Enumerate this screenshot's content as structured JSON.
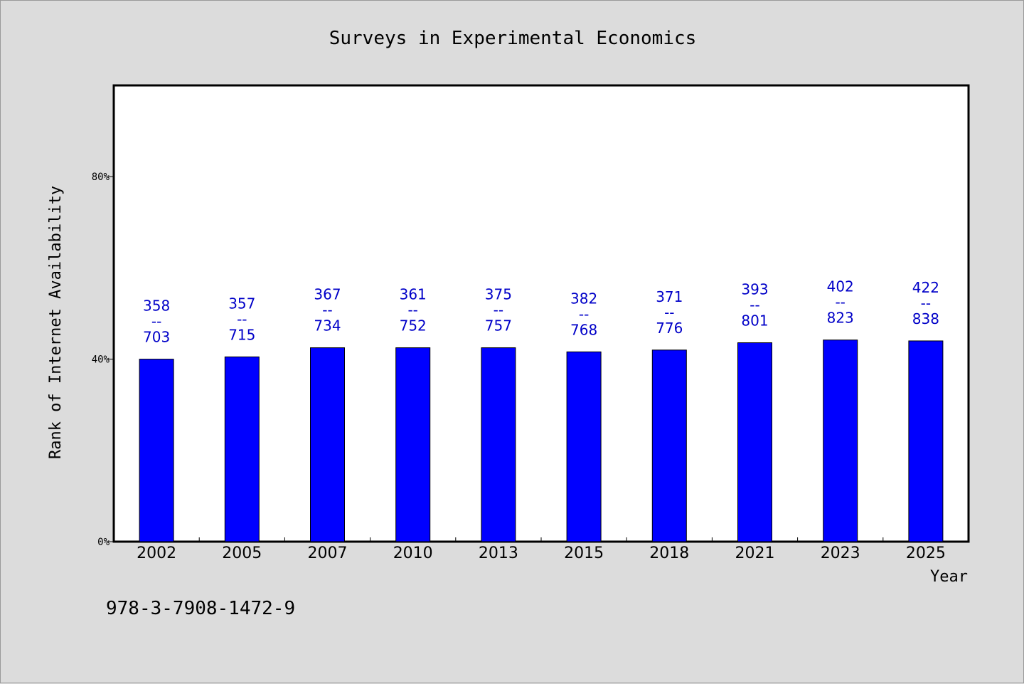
{
  "chart_data": {
    "type": "bar",
    "title": "Surveys in Experimental Economics",
    "xlabel": "Year",
    "ylabel": "Rank of Internet Availability",
    "ylim": [
      0,
      100
    ],
    "yticks": [
      {
        "value": 0,
        "label": "0%"
      },
      {
        "value": 40,
        "label": "40%"
      },
      {
        "value": 80,
        "label": "80%"
      }
    ],
    "categories": [
      "2002",
      "2005",
      "2007",
      "2010",
      "2013",
      "2015",
      "2018",
      "2021",
      "2023",
      "2025"
    ],
    "values": [
      40.0,
      40.5,
      42.5,
      42.5,
      42.5,
      41.6,
      42.0,
      43.6,
      44.2,
      44.0
    ],
    "data_labels": [
      {
        "top": "358",
        "sep": "--",
        "bottom": "703"
      },
      {
        "top": "357",
        "sep": "--",
        "bottom": "715"
      },
      {
        "top": "367",
        "sep": "--",
        "bottom": "734"
      },
      {
        "top": "361",
        "sep": "--",
        "bottom": "752"
      },
      {
        "top": "375",
        "sep": "--",
        "bottom": "757"
      },
      {
        "top": "382",
        "sep": "--",
        "bottom": "768"
      },
      {
        "top": "371",
        "sep": "--",
        "bottom": "776"
      },
      {
        "top": "393",
        "sep": "--",
        "bottom": "801"
      },
      {
        "top": "402",
        "sep": "--",
        "bottom": "823"
      },
      {
        "top": "422",
        "sep": "--",
        "bottom": "838"
      }
    ],
    "bar_color": "#0000ff",
    "label_color": "#0000c8",
    "grid": false,
    "legend": "none"
  },
  "footer": {
    "isbn": "978-3-7908-1472-9"
  }
}
